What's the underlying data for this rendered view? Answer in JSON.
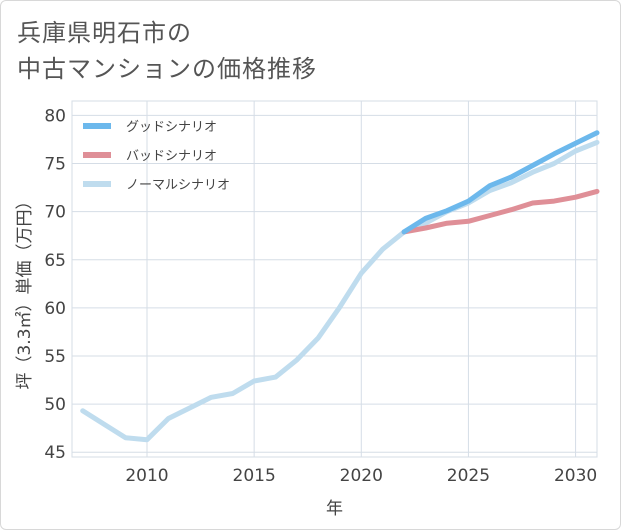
{
  "header": {
    "title_line1": "兵庫県明石市の",
    "title_line2": "中古マンションの価格推移"
  },
  "chart_data": {
    "type": "line",
    "title": "兵庫県明石市の中古マンションの価格推移",
    "xlabel": "年",
    "ylabel": "坪（3.3㎡）単価（万円）",
    "xlim": [
      2006.5,
      2031
    ],
    "ylim": [
      44.5,
      81.5
    ],
    "x_ticks": [
      2010,
      2015,
      2020,
      2025,
      2030
    ],
    "y_ticks": [
      45,
      50,
      55,
      60,
      65,
      70,
      75,
      80
    ],
    "grid": true,
    "legend_position": "top-left",
    "series": [
      {
        "name": "グッドシナリオ",
        "color": "#6cb8ec",
        "x": [
          2022,
          2023,
          2024,
          2025,
          2026,
          2027,
          2028,
          2029,
          2030,
          2031
        ],
        "values": [
          67.9,
          69.3,
          70.1,
          71.1,
          72.7,
          73.6,
          74.8,
          76.0,
          77.1,
          78.2
        ]
      },
      {
        "name": "バッドシナリオ",
        "color": "#df8f97",
        "x": [
          2022,
          2023,
          2024,
          2025,
          2026,
          2027,
          2028,
          2029,
          2030,
          2031
        ],
        "values": [
          67.9,
          68.3,
          68.8,
          69.0,
          69.6,
          70.2,
          70.9,
          71.1,
          71.5,
          72.1
        ]
      },
      {
        "name": "ノーマルシナリオ",
        "color": "#bfdcee",
        "x": [
          2007,
          2008,
          2009,
          2010,
          2011,
          2012,
          2013,
          2014,
          2015,
          2016,
          2017,
          2018,
          2019,
          2020,
          2021,
          2022,
          2023,
          2024,
          2025,
          2026,
          2027,
          2028,
          2029,
          2030,
          2031
        ],
        "values": [
          49.3,
          47.9,
          46.5,
          46.3,
          48.5,
          49.6,
          50.7,
          51.1,
          52.4,
          52.8,
          54.6,
          56.9,
          60.1,
          63.6,
          66.1,
          67.9,
          68.8,
          70.0,
          70.9,
          72.2,
          73.0,
          74.1,
          75.0,
          76.3,
          77.2
        ]
      }
    ]
  }
}
